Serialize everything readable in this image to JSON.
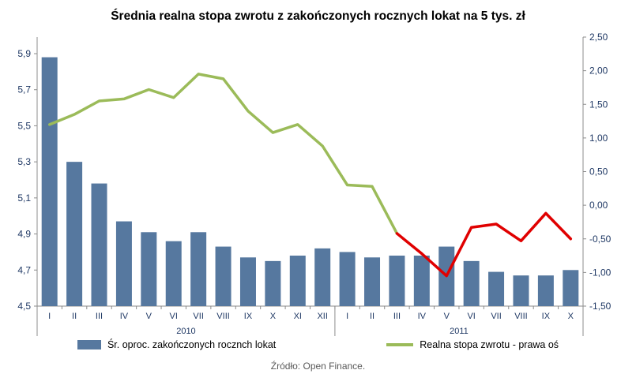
{
  "title": "Średnia realna stopa zwrotu z zakończonych rocznych lokat na 5 tys. zł",
  "source": "Źródło: Open Finance.",
  "legend": {
    "bars_label": "Śr. oproc. zakończonych rocznch lokat",
    "line_label": "Realna stopa zwrotu - prawa oś"
  },
  "colors": {
    "bar": "#56789F",
    "line_green": "#9BBB59",
    "line_red": "#E00000",
    "axis_text": "#1F3864",
    "axis_line": "#8C8C8C",
    "source_text": "#595959"
  },
  "chart_data": {
    "type": "bar",
    "subtype": "bar+line dual axis",
    "title": "Średnia realna stopa zwrotu z zakończonych rocznych lokat na 5 tys. zł",
    "categories": [
      "I",
      "II",
      "III",
      "IV",
      "V",
      "VI",
      "VII",
      "VIII",
      "IX",
      "X",
      "XI",
      "XII",
      "I",
      "II",
      "III",
      "IV",
      "V",
      "VI",
      "VII",
      "VIII",
      "IX",
      "X"
    ],
    "year_groups": [
      {
        "label": "2010",
        "count": 12
      },
      {
        "label": "2011",
        "count": 10
      }
    ],
    "series": [
      {
        "name": "Śr. oproc. zakończonych rocznch lokat",
        "type": "bar",
        "axis": "left",
        "values": [
          5.88,
          5.3,
          5.18,
          4.97,
          4.91,
          4.86,
          4.91,
          4.83,
          4.77,
          4.75,
          4.78,
          4.82,
          4.8,
          4.77,
          4.78,
          4.78,
          4.83,
          4.75,
          4.69,
          4.67,
          4.67,
          4.7
        ]
      },
      {
        "name": "Realna stopa zwrotu - prawa oś",
        "type": "line",
        "axis": "right",
        "values": [
          1.2,
          1.35,
          1.55,
          1.58,
          1.72,
          1.6,
          1.95,
          1.88,
          1.4,
          1.08,
          1.2,
          0.88,
          0.3,
          0.28,
          -0.42,
          -0.72,
          -1.05,
          -0.33,
          -0.28,
          -0.53,
          -0.12,
          -0.5
        ],
        "color_segments": [
          {
            "from": 0,
            "to": 14,
            "color_key": "line_green"
          },
          {
            "from": 14,
            "to": 21,
            "color_key": "line_red"
          }
        ]
      }
    ],
    "left_axis": {
      "ticks": [
        "4,5",
        "4,7",
        "4,9",
        "5,1",
        "5,3",
        "5,5",
        "5,7",
        "5,9"
      ],
      "tick_values": [
        4.5,
        4.7,
        4.9,
        5.1,
        5.3,
        5.5,
        5.7,
        5.9
      ],
      "range": [
        4.5,
        6.0
      ]
    },
    "right_axis": {
      "ticks": [
        "-1,50",
        "-1,00",
        "-0,50",
        "0,00",
        "0,50",
        "1,00",
        "1,50",
        "2,00",
        "2,50"
      ],
      "tick_values": [
        -1.5,
        -1.0,
        -0.5,
        0.0,
        0.5,
        1.0,
        1.5,
        2.0,
        2.5
      ],
      "range": [
        -1.5,
        2.5
      ]
    },
    "grid": false,
    "legend_position": "bottom"
  }
}
